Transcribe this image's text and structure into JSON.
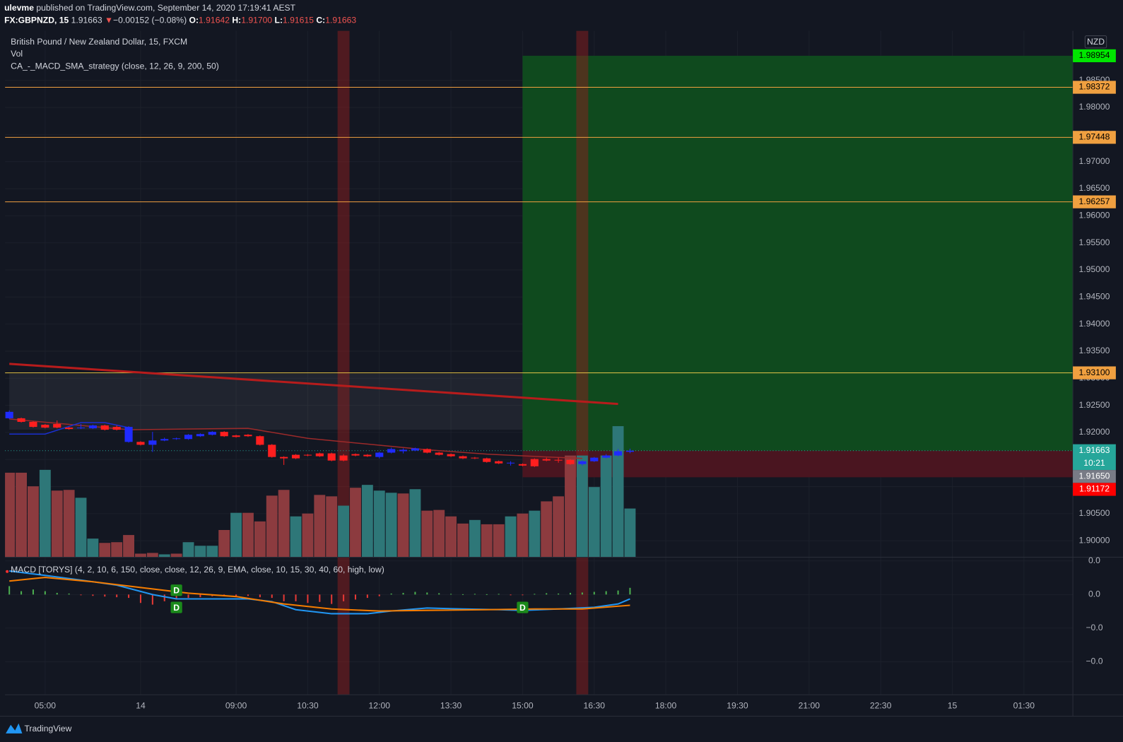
{
  "header": {
    "user": "ulevme",
    "published": "published on TradingView.com, September 14, 2020 17:19:41 AEST",
    "symbol": "FX:GBPNZD, 15",
    "last": "1.91663",
    "arrow": "▼",
    "change": "−0.00152 (−0.08%)",
    "ohlc": [
      {
        "label": "O:",
        "value": "1.91642"
      },
      {
        "label": "H:",
        "value": "1.91700"
      },
      {
        "label": "L:",
        "value": "1.91615"
      },
      {
        "label": "C:",
        "value": "1.91663"
      }
    ],
    "legend": [
      "British Pound / New Zealand Dollar, 15, FXCM",
      "Vol",
      "CA_-_MACD_SMA_strategy (close, 12, 26, 9, 200, 50)"
    ],
    "currency": "NZD",
    "footer": "TradingView"
  },
  "chart_data": {
    "type": "candlestick",
    "xlim": [
      -0.36,
      89.1
    ],
    "xticks": [
      {
        "value": 3,
        "label": "05:00"
      },
      {
        "value": 11,
        "label": "14"
      },
      {
        "value": 19,
        "label": "09:00"
      },
      {
        "value": 25,
        "label": "10:30"
      },
      {
        "value": 31,
        "label": "12:00"
      },
      {
        "value": 37,
        "label": "13:30"
      },
      {
        "value": 43,
        "label": "15:00"
      },
      {
        "value": 49,
        "label": "16:30"
      },
      {
        "value": 55,
        "label": "18:00"
      },
      {
        "value": 61,
        "label": "19:30"
      },
      {
        "value": 67,
        "label": "21:00"
      },
      {
        "value": 73,
        "label": "22:30"
      },
      {
        "value": 79,
        "label": "15"
      },
      {
        "value": 85,
        "label": "01:30"
      }
    ],
    "ylim": [
      1.89696,
      1.99415
    ],
    "yticks": [
      {
        "value": 1.9,
        "label": "1.90000"
      },
      {
        "value": 1.905,
        "label": "1.90500"
      },
      {
        "value": 1.91,
        "label": "1.91000"
      },
      {
        "value": 1.915,
        "label": "1.91500"
      },
      {
        "value": 1.92,
        "label": "1.92000"
      },
      {
        "value": 1.925,
        "label": "1.92500"
      },
      {
        "value": 1.93,
        "label": "1.93000"
      },
      {
        "value": 1.935,
        "label": "1.93500"
      },
      {
        "value": 1.94,
        "label": "1.94000"
      },
      {
        "value": 1.945,
        "label": "1.94500"
      },
      {
        "value": 1.95,
        "label": "1.95000"
      },
      {
        "value": 1.955,
        "label": "1.95500"
      },
      {
        "value": 1.96,
        "label": "1.96000"
      },
      {
        "value": 1.965,
        "label": "1.96500"
      },
      {
        "value": 1.97,
        "label": "1.97000"
      },
      {
        "value": 1.975,
        "label": "1.97500"
      },
      {
        "value": 1.98,
        "label": "1.98000"
      },
      {
        "value": 1.985,
        "label": "1.98500"
      }
    ],
    "grid": true,
    "up_color": "#1f2bff",
    "down_color": "#ff1f1f",
    "open": [
      1.92261,
      1.92261,
      1.92195,
      1.92142,
      1.92155,
      1.92089,
      1.92076,
      1.92076,
      1.92129,
      1.92102,
      1.91825,
      1.91825,
      1.91772,
      1.91851,
      1.91878,
      1.91878,
      1.9193,
      1.91957,
      1.9201,
      1.91944,
      1.91957,
      1.9193,
      1.91772,
      1.91547,
      1.91587,
      1.91587,
      1.91613,
      1.91613,
      1.91574,
      1.916,
      1.91587,
      1.91547,
      1.91627,
      1.91653,
      1.91666,
      1.91693,
      1.91627,
      1.916,
      1.9156,
      1.91534,
      1.91521,
      1.91468,
      1.91428,
      1.91415,
      1.91508,
      1.91508,
      1.91494,
      1.91494,
      1.91415,
      1.91468,
      1.91534,
      1.91574,
      1.91642
    ],
    "high": [
      1.92407,
      1.92274,
      1.92208,
      1.92155,
      1.92221,
      1.92102,
      1.92155,
      1.92142,
      1.92142,
      1.92129,
      1.92116,
      1.91838,
      1.9201,
      1.91904,
      1.91904,
      1.9197,
      1.91983,
      1.92023,
      1.92023,
      1.91957,
      1.9197,
      1.91944,
      1.91785,
      1.9156,
      1.916,
      1.916,
      1.91627,
      1.91627,
      1.916,
      1.91613,
      1.916,
      1.9164,
      1.91719,
      1.91706,
      1.91719,
      1.91706,
      1.9164,
      1.91613,
      1.91574,
      1.91547,
      1.91534,
      1.91481,
      1.91468,
      1.91428,
      1.91521,
      1.91534,
      1.91534,
      1.91508,
      1.91481,
      1.91547,
      1.916,
      1.91693,
      1.917
    ],
    "low": [
      1.92248,
      1.92182,
      1.92089,
      1.92076,
      1.92076,
      1.9205,
      1.92063,
      1.92063,
      1.92036,
      1.92036,
      1.91811,
      1.91759,
      1.9164,
      1.91838,
      1.91864,
      1.91864,
      1.91917,
      1.91944,
      1.91917,
      1.91904,
      1.91917,
      1.91759,
      1.91534,
      1.914,
      1.91508,
      1.9156,
      1.91547,
      1.91468,
      1.91468,
      1.9156,
      1.91547,
      1.9152,
      1.91613,
      1.91613,
      1.91653,
      1.91613,
      1.91574,
      1.91547,
      1.91508,
      1.91508,
      1.91441,
      1.91415,
      1.91388,
      1.91375,
      1.91362,
      1.91468,
      1.91441,
      1.91402,
      1.91388,
      1.91455,
      1.91521,
      1.9156,
      1.91615
    ],
    "close": [
      1.9238,
      1.92195,
      1.92102,
      1.92089,
      1.92089,
      1.92063,
      1.92089,
      1.92129,
      1.9205,
      1.9205,
      1.92102,
      1.91772,
      1.91851,
      1.91878,
      1.91891,
      1.91957,
      1.9197,
      1.9201,
      1.9193,
      1.91917,
      1.9193,
      1.91772,
      1.91547,
      1.91521,
      1.91521,
      1.91574,
      1.9156,
      1.91481,
      1.91481,
      1.91574,
      1.9156,
      1.91627,
      1.91693,
      1.9168,
      1.91706,
      1.91627,
      1.91587,
      1.9156,
      1.91521,
      1.91521,
      1.91455,
      1.91428,
      1.91441,
      1.91388,
      1.91375,
      1.91481,
      1.91481,
      1.91415,
      1.91468,
      1.91534,
      1.91574,
      1.91653,
      1.91663
    ],
    "volume": {
      "ylim": [
        0,
        735
      ],
      "values": [
        118,
        118,
        99,
        122,
        93,
        94,
        83,
        26,
        20,
        21,
        31,
        5,
        6,
        4,
        5,
        21,
        16,
        16,
        38,
        62,
        62,
        50,
        86,
        94,
        57,
        61,
        87,
        85,
        72,
        97,
        101,
        93,
        90,
        89,
        95,
        65,
        66,
        57,
        47,
        52,
        46,
        46,
        57,
        61,
        65,
        78,
        85,
        142,
        142,
        98,
        142,
        183,
        68
      ],
      "colors": [
        "#8c3b3f",
        "#8c3b3f",
        "#8c3b3f",
        "#2e7778",
        "#8c3b3f",
        "#8c3b3f",
        "#2e7778",
        "#2e7778",
        "#8c3b3f",
        "#8c3b3f",
        "#8c3b3f",
        "#8c3b3f",
        "#8c3b3f",
        "#2e7778",
        "#8c3b3f",
        "#2e7778",
        "#2e7778",
        "#2e7778",
        "#8c3b3f",
        "#2e7778",
        "#8c3b3f",
        "#8c3b3f",
        "#8c3b3f",
        "#8c3b3f",
        "#2e7778",
        "#8c3b3f",
        "#8c3b3f",
        "#8c3b3f",
        "#2e7778",
        "#8c3b3f",
        "#2e7778",
        "#2e7778",
        "#2e7778",
        "#8c3b3f",
        "#2e7778",
        "#8c3b3f",
        "#8c3b3f",
        "#8c3b3f",
        "#8c3b3f",
        "#2e7778",
        "#8c3b3f",
        "#8c3b3f",
        "#2e7778",
        "#8c3b3f",
        "#2e7778",
        "#8c3b3f",
        "#8c3b3f",
        "#8c3b3f",
        "#2e7778",
        "#2e7778",
        "#2e7778",
        "#2e7778",
        "#2e7778"
      ]
    },
    "overlays": [
      {
        "color": "#b71c1c",
        "width": 3,
        "x": [
          0,
          51
        ],
        "values": [
          1.93266,
          1.92526
        ]
      },
      {
        "color": "#9c2a2a",
        "width": 1.5,
        "x": [
          0,
          10,
          20,
          25,
          30,
          35,
          40,
          45,
          48
        ],
        "values": [
          1.92248,
          1.9205,
          1.92076,
          1.91891,
          1.91785,
          1.91679,
          1.916,
          1.91547,
          1.91521
        ]
      },
      {
        "color": "#1a2fd0",
        "width": 1.5,
        "x": [
          0,
          3,
          6,
          8,
          10
        ],
        "values": [
          1.9197,
          1.9197,
          1.92182,
          1.92182,
          1.92089
        ]
      }
    ],
    "zone": {
      "start": 0,
      "end": 51,
      "top": 1.93081,
      "bottom": 1.9205,
      "color": "rgba(255,255,255,0.06)"
    },
    "position": {
      "start": 43,
      "target": 1.98954,
      "entry": 1.91663,
      "stop": 1.91172,
      "profit_color": "#0f4a1e",
      "loss_color": "#4a1520"
    },
    "highlight_bars": [
      28,
      48
    ],
    "highlight_color": "rgba(140,30,30,0.5)",
    "price_tags": [
      {
        "value": 1.98954,
        "color": "#00e600",
        "text_color": "#000000"
      },
      {
        "value": 1.98372,
        "color": "#f0a040",
        "text_color": "#000000",
        "line": "#f0a040"
      },
      {
        "value": 1.97448,
        "color": "#f0a040",
        "text_color": "#000000",
        "line": "#f0a040"
      },
      {
        "value": 1.96257,
        "color": "#f0a040",
        "text_color": "#000000",
        "line": "#f0a040"
      },
      {
        "value": 1.931,
        "label": "1.93100",
        "color": "#f0a040",
        "text_color": "#000000",
        "line": "#e6c547"
      },
      {
        "value": 1.91663,
        "color": "#26a69a",
        "text_color": "#ffffff",
        "line": "#26a69a",
        "line_style": "dotted",
        "countdown": "10:21"
      },
      {
        "value": 1.9165,
        "label": "1.91650",
        "color": "#787b86",
        "text_color": "#ffffff"
      },
      {
        "value": 1.91172,
        "color": "#ff0000",
        "text_color": "#ffffff"
      }
    ],
    "macd": {
      "type": "line",
      "title": "MACD [TORYS] (4, 2, 10, 6, 150, close, close, 12, 26, 9, EMA, close, 10, 15, 30, 40, 60, high, low)",
      "ylim": [
        -0.00298,
        0.00111
      ],
      "yticks": [
        {
          "value": 0.001,
          "label": "0.0"
        },
        {
          "value": 0,
          "label": "0.0"
        },
        {
          "value": -0.001,
          "label": "−0.0"
        },
        {
          "value": -0.002,
          "label": "−0.0"
        }
      ],
      "series": [
        {
          "color": "#2196f3",
          "x": [
            0,
            3,
            6,
            9,
            12,
            14,
            17,
            20,
            22,
            24,
            27,
            30,
            32,
            35,
            38,
            41,
            43,
            46,
            49,
            51,
            52
          ],
          "values": [
            0.0007,
            0.00057,
            0.00043,
            0.00028,
            0,
            -0.00013,
            -0.00013,
            -0.00013,
            -0.00021,
            -0.00045,
            -0.00057,
            -0.00057,
            -0.00049,
            -0.0004,
            -0.00043,
            -0.00045,
            -0.00047,
            -0.00043,
            -0.00038,
            -0.00028,
            -0.00013
          ]
        },
        {
          "color": "#f57c00",
          "x": [
            0,
            3,
            7,
            11,
            15,
            19,
            23,
            27,
            31,
            35,
            40,
            44,
            48,
            52
          ],
          "values": [
            0.0004,
            0.00051,
            0.00038,
            0.00021,
            4e-05,
            -6e-05,
            -0.00028,
            -0.00043,
            -0.00049,
            -0.00047,
            -0.00045,
            -0.00043,
            -0.00043,
            -0.00032
          ]
        }
      ],
      "histogram": {
        "up_color": "#4caf50",
        "down_color": "#e53935",
        "values": [
          0.00025,
          0.0001,
          0.00015,
          0.0001,
          5e-05,
          3e-05,
          -2e-05,
          -4e-05,
          -6e-05,
          -8e-05,
          -0.0001,
          -0.00025,
          -0.0003,
          -0.0002,
          -0.00015,
          -0.0001,
          -8e-05,
          -5e-05,
          -5e-05,
          -6e-05,
          -4e-05,
          -8e-05,
          -0.0001,
          -0.0002,
          -0.0002,
          -0.00025,
          -0.00022,
          -0.00028,
          -0.0002,
          -0.00015,
          -0.0001,
          -5e-05,
          3e-05,
          5e-05,
          8e-05,
          6e-05,
          4e-05,
          2e-05,
          1e-05,
          2e-05,
          1e-05,
          2e-05,
          -2e-05,
          -2e-05,
          2e-05,
          4e-05,
          3e-05,
          5e-05,
          6e-05,
          8e-05,
          0.0001,
          0.00012,
          0.0002
        ]
      },
      "annotations": [
        {
          "text": "D",
          "x": 14,
          "side": "above"
        },
        {
          "text": "D",
          "x": 14,
          "side": "below"
        },
        {
          "text": "D",
          "x": 43,
          "side": "below"
        }
      ]
    }
  }
}
